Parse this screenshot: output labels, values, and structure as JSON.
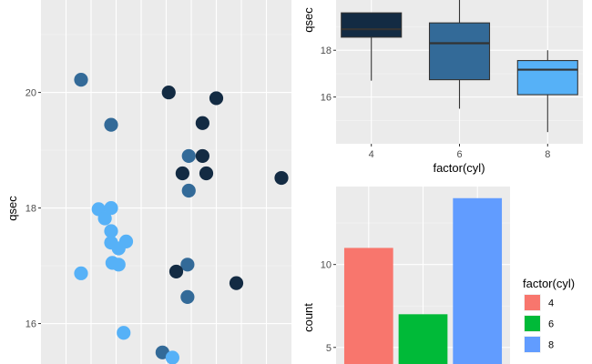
{
  "chart_data": [
    {
      "type": "scatter",
      "ylabel": "qsec",
      "xlabel": "",
      "ylim": [
        15.3,
        21.6
      ],
      "xlim": [
        0,
        10
      ],
      "yticks": [
        16,
        18,
        20
      ],
      "xgrid": [
        1,
        2,
        3,
        4,
        5,
        6,
        7,
        8,
        9
      ],
      "colors": {
        "4": "#56b1f7",
        "6": "#336a98",
        "8": "#132b43"
      },
      "points": [
        {
          "x": 1.6,
          "y": 20.22,
          "cyl": "6"
        },
        {
          "x": 5.1,
          "y": 20.0,
          "cyl": "8"
        },
        {
          "x": 7.0,
          "y": 19.9,
          "cyl": "8"
        },
        {
          "x": 2.8,
          "y": 19.44,
          "cyl": "6"
        },
        {
          "x": 6.45,
          "y": 19.47,
          "cyl": "8"
        },
        {
          "x": 5.9,
          "y": 18.9,
          "cyl": "6"
        },
        {
          "x": 6.45,
          "y": 18.9,
          "cyl": "8"
        },
        {
          "x": 5.65,
          "y": 18.6,
          "cyl": "8"
        },
        {
          "x": 6.6,
          "y": 18.6,
          "cyl": "8"
        },
        {
          "x": 9.6,
          "y": 18.52,
          "cyl": "8"
        },
        {
          "x": 5.9,
          "y": 18.3,
          "cyl": "6"
        },
        {
          "x": 2.3,
          "y": 17.98,
          "cyl": "4"
        },
        {
          "x": 2.8,
          "y": 18.0,
          "cyl": "4"
        },
        {
          "x": 2.55,
          "y": 17.82,
          "cyl": "4"
        },
        {
          "x": 2.8,
          "y": 17.6,
          "cyl": "4"
        },
        {
          "x": 2.8,
          "y": 17.4,
          "cyl": "4"
        },
        {
          "x": 3.4,
          "y": 17.42,
          "cyl": "4"
        },
        {
          "x": 3.1,
          "y": 17.3,
          "cyl": "4"
        },
        {
          "x": 2.85,
          "y": 17.05,
          "cyl": "4"
        },
        {
          "x": 3.1,
          "y": 17.02,
          "cyl": "4"
        },
        {
          "x": 5.85,
          "y": 17.02,
          "cyl": "6"
        },
        {
          "x": 5.4,
          "y": 16.9,
          "cyl": "8"
        },
        {
          "x": 1.6,
          "y": 16.87,
          "cyl": "4"
        },
        {
          "x": 7.8,
          "y": 16.7,
          "cyl": "8"
        },
        {
          "x": 5.85,
          "y": 16.46,
          "cyl": "6"
        },
        {
          "x": 3.3,
          "y": 15.84,
          "cyl": "4"
        },
        {
          "x": 4.85,
          "y": 15.5,
          "cyl": "6"
        },
        {
          "x": 5.25,
          "y": 15.41,
          "cyl": "4"
        }
      ]
    },
    {
      "type": "boxplot",
      "xlabel": "factor(cyl)",
      "ylabel": "qsec",
      "categories": [
        "4",
        "6",
        "8"
      ],
      "yticks": [
        16,
        18
      ],
      "ylim": [
        14.0,
        20.15
      ],
      "boxes": [
        {
          "cat": "4",
          "lower_whisker": 16.7,
          "q1": 18.56,
          "median": 18.9,
          "q3": 19.6,
          "upper_whisker": 19.6,
          "fill": "#132b43"
        },
        {
          "cat": "6",
          "lower_whisker": 15.5,
          "q1": 16.74,
          "median": 18.3,
          "q3": 19.17,
          "upper_whisker": 20.22,
          "fill": "#336a98"
        },
        {
          "cat": "8",
          "lower_whisker": 14.5,
          "q1": 16.1,
          "median": 17.17,
          "q3": 17.56,
          "upper_whisker": 18.0,
          "fill": "#56b1f7"
        }
      ]
    },
    {
      "type": "bar",
      "ylabel": "count",
      "xlabel": "",
      "categories": [
        "4",
        "6",
        "8"
      ],
      "values": [
        11,
        7,
        14
      ],
      "colors": [
        "#f8766d",
        "#00ba38",
        "#619cff"
      ],
      "yticks": [
        5,
        10
      ],
      "ylim": [
        4,
        14.7
      ],
      "legend": {
        "title": "factor(cyl)",
        "entries": [
          "4",
          "6",
          "8"
        ],
        "position": "right"
      }
    }
  ]
}
